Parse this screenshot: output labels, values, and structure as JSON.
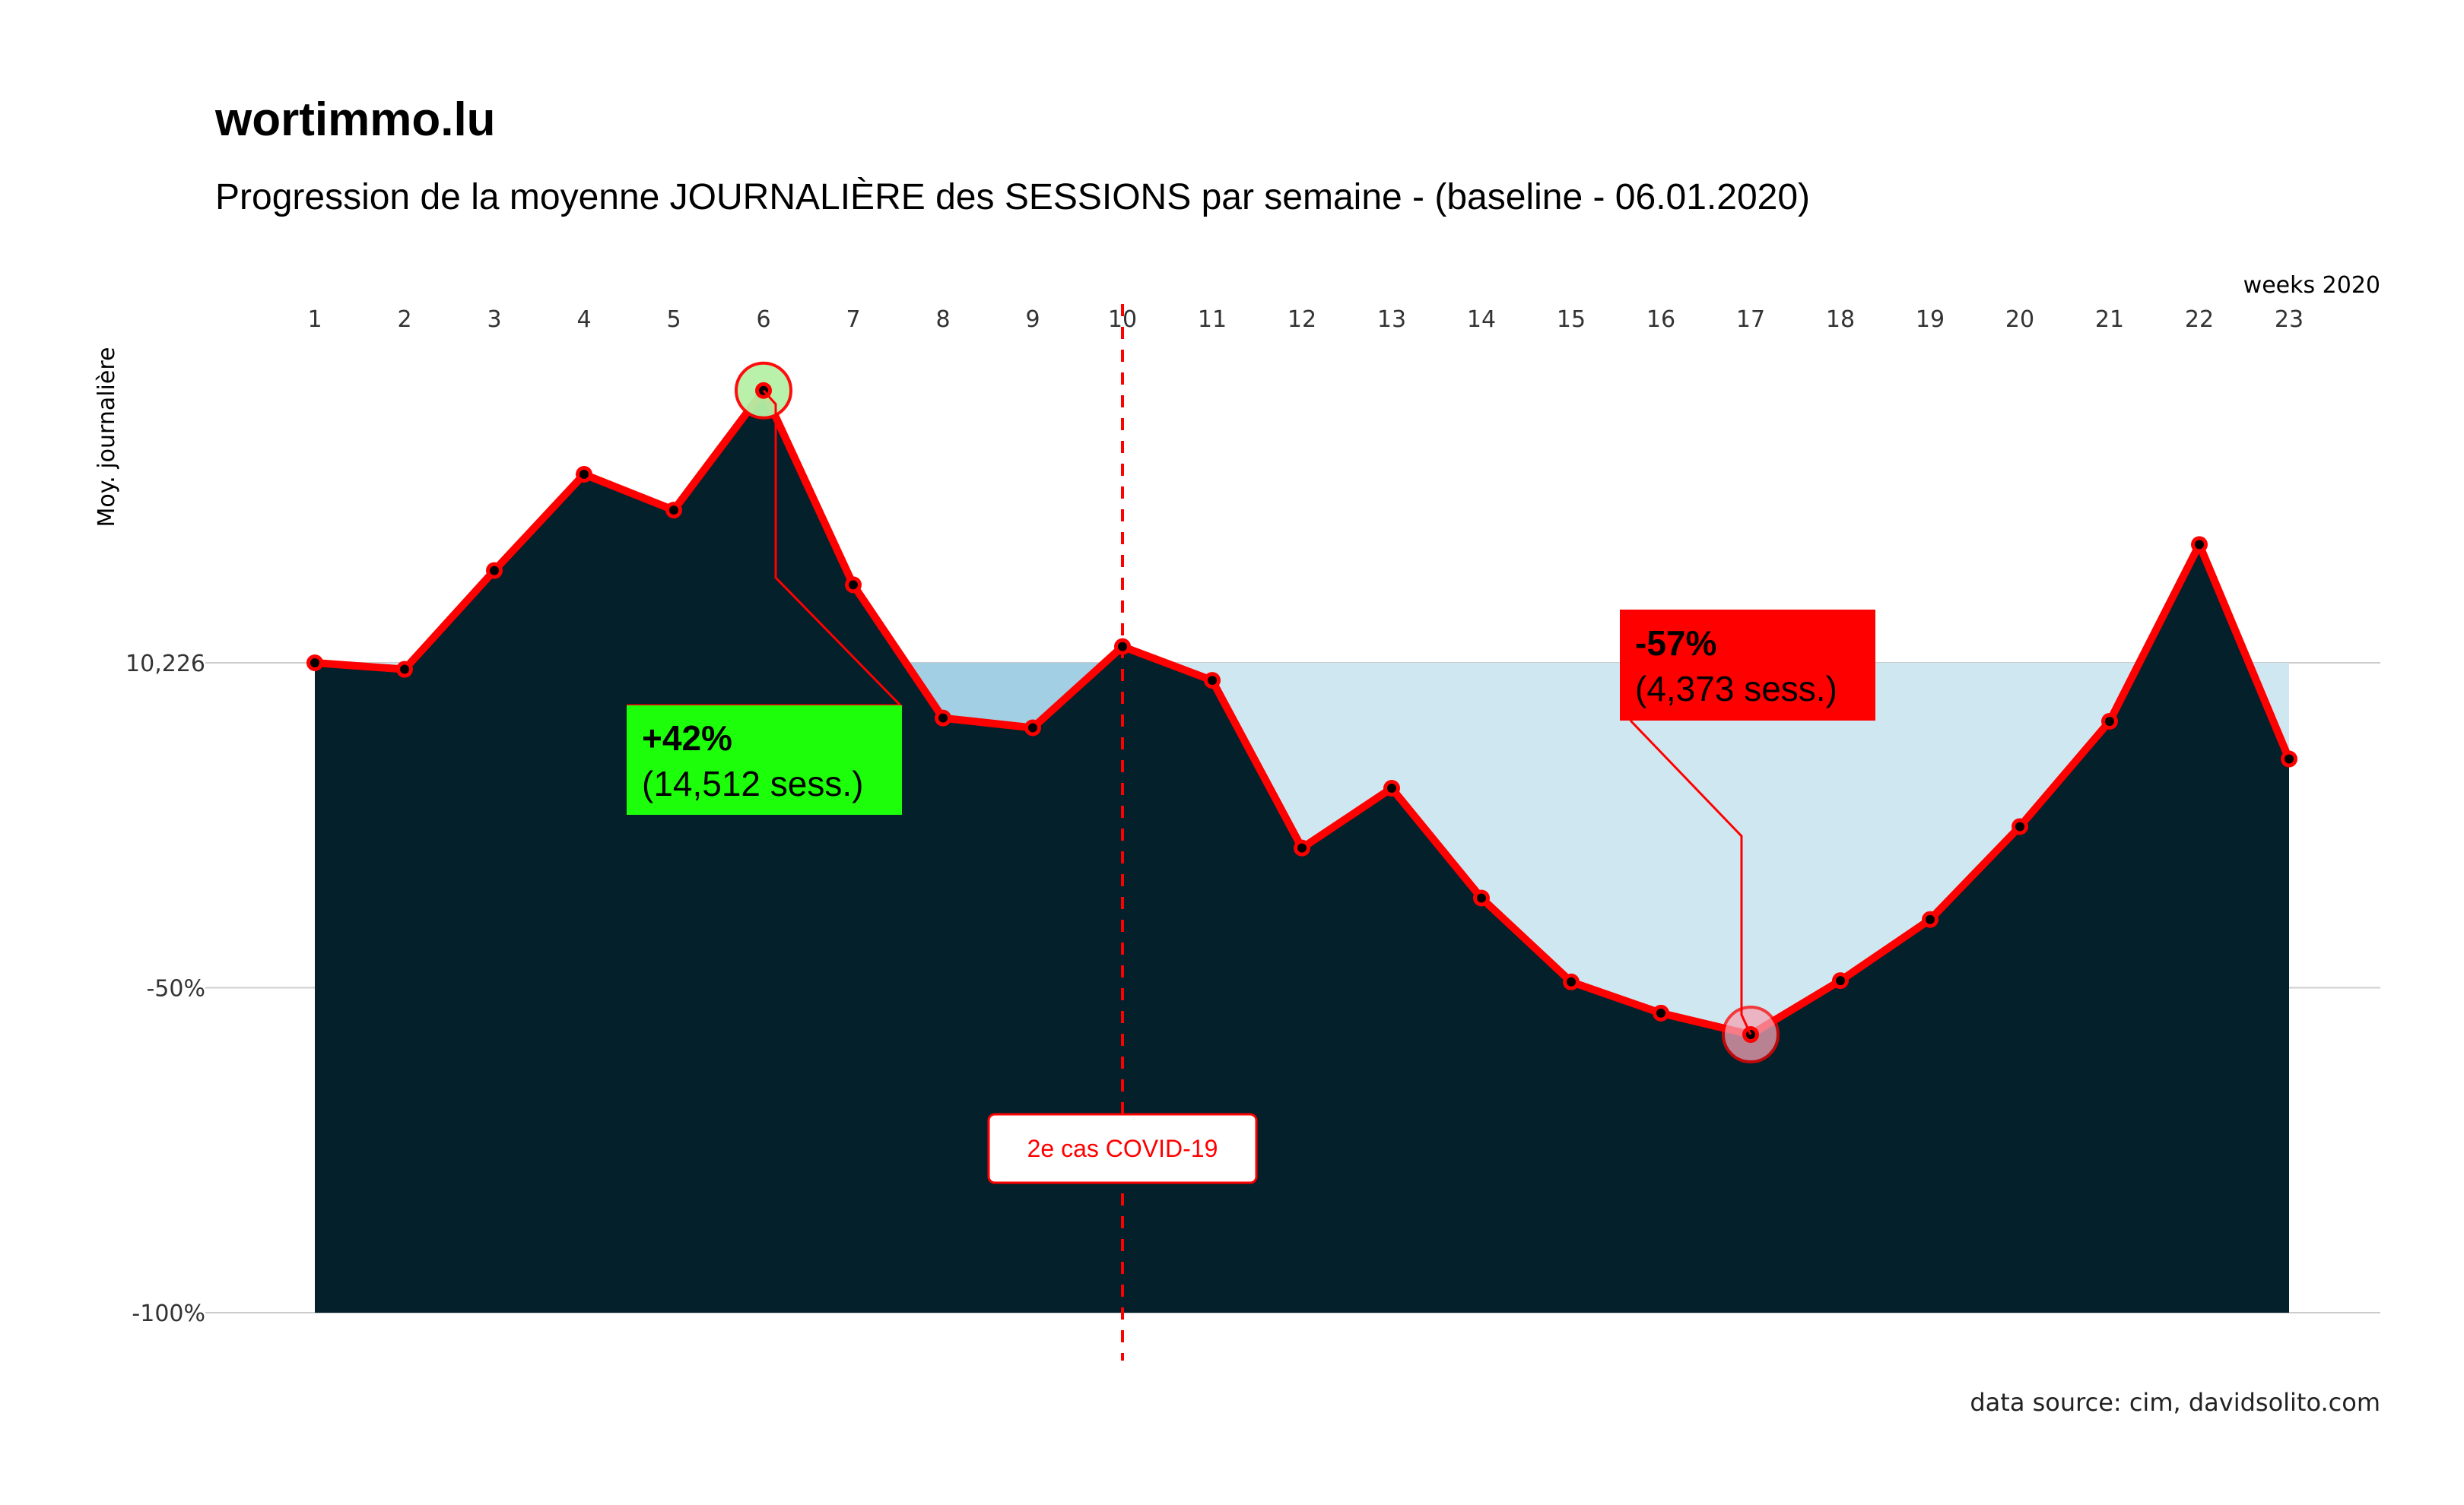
{
  "title": "wortimmo.lu",
  "subtitle": "Progression de la moyenne JOURNALIÈRE des SESSIONS par semaine - (baseline - 06.01.2020)",
  "source": "data source: cim, davidsolito.com",
  "colors": {
    "line": "#ff0000",
    "area": "#03202b",
    "baseline_fill": "#cfe7f0",
    "baseline_fill_above": "#a2cfe3",
    "marker": "#000000",
    "max_highlight": "#b6f0a6",
    "min_highlight": "#f5a3b5",
    "gain_box": "#1dff0a",
    "loss_box": "#ff0000",
    "covid": "#ff0000",
    "grid": "#cccccc"
  },
  "chart_data": {
    "type": "area",
    "xlabel": "weeks 2020",
    "ylabel": "Moy. journalière",
    "x": [
      1,
      2,
      3,
      4,
      5,
      6,
      7,
      8,
      9,
      10,
      11,
      12,
      13,
      14,
      15,
      16,
      17,
      18,
      19,
      20,
      21,
      22,
      23
    ],
    "series": [
      {
        "values": [
          0.0,
          -1.0,
          14.2,
          29.0,
          23.5,
          41.9,
          12.0,
          -8.5,
          -10.0,
          2.5,
          -2.7,
          -28.5,
          -19.3,
          -36.2,
          -49.1,
          -53.9,
          -57.2,
          -48.9,
          -39.5,
          -25.2,
          -9.0,
          18.2,
          -14.8
        ]
      }
    ],
    "yticks": [
      {
        "value": 0,
        "label": "10,226"
      },
      {
        "value": -50,
        "label": "-50%"
      },
      {
        "value": -100,
        "label": "-100%"
      }
    ],
    "ylim": [
      -100,
      45
    ],
    "baseline_value": 10226,
    "grid": "horizontal",
    "x_axis_position": "top",
    "annotations": [
      {
        "type": "max",
        "week": 6,
        "pct": "+42%",
        "sessions": "(14,512 sess.)"
      },
      {
        "type": "min",
        "week": 17,
        "pct": "-57%",
        "sessions": "(4,373 sess.)"
      },
      {
        "type": "vline",
        "week": 10,
        "label": "2e cas COVID-19"
      }
    ]
  }
}
